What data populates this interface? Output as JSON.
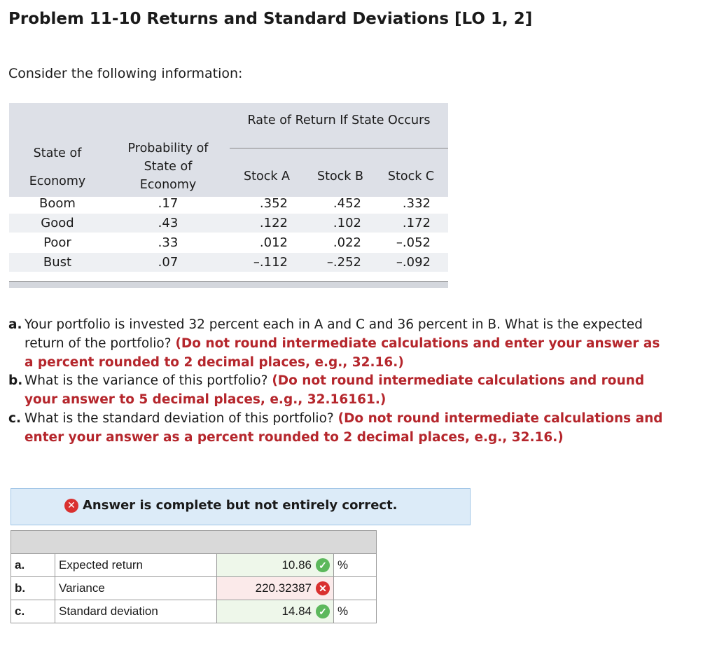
{
  "header": {
    "title": "Problem 11-10 Returns and Standard Deviations [LO 1, 2]"
  },
  "intro": "Consider the following information:",
  "table": {
    "group_header": "Rate of Return If State Occurs",
    "state_header": [
      "State of",
      "Economy"
    ],
    "probability_header": [
      "Probability of",
      "State of",
      "Economy"
    ],
    "stock_headers": [
      "Stock A",
      "Stock B",
      "Stock C"
    ],
    "rows": [
      [
        "Boom",
        ".17",
        ".352",
        ".452",
        ".332"
      ],
      [
        "Good",
        ".43",
        ".122",
        ".102",
        ".172"
      ],
      [
        "Poor",
        ".33",
        ".012",
        ".022",
        "–.052"
      ],
      [
        "Bust",
        ".07",
        "–.112",
        "–.252",
        "–.092"
      ]
    ]
  },
  "questions": [
    {
      "label": "a.",
      "text": "Your portfolio is invested 32 percent each in A and C and 36 percent in B. What is the expected return of the portfolio?",
      "instruction": "(Do not round intermediate calculations and enter your answer as a percent rounded to 2 decimal places, e.g., 32.16.)"
    },
    {
      "label": "b.",
      "text": "What is the variance of this portfolio?",
      "instruction": "(Do not round intermediate calculations and round your answer to 5 decimal places, e.g., 32.16161.)"
    },
    {
      "label": "c.",
      "text": "What is the standard deviation of this portfolio?",
      "instruction": "(Do not round intermediate calculations and enter your answer as a percent rounded to 2 decimal places, e.g., 32.16.)"
    }
  ],
  "feedback": "Answer is complete but not entirely correct.",
  "answers": [
    [
      "a.",
      "Expected return",
      "10.86",
      "%"
    ],
    [
      "b.",
      "Variance",
      "220.32387",
      ""
    ],
    [
      "c.",
      "Standard deviation",
      "14.84",
      "%"
    ]
  ]
}
